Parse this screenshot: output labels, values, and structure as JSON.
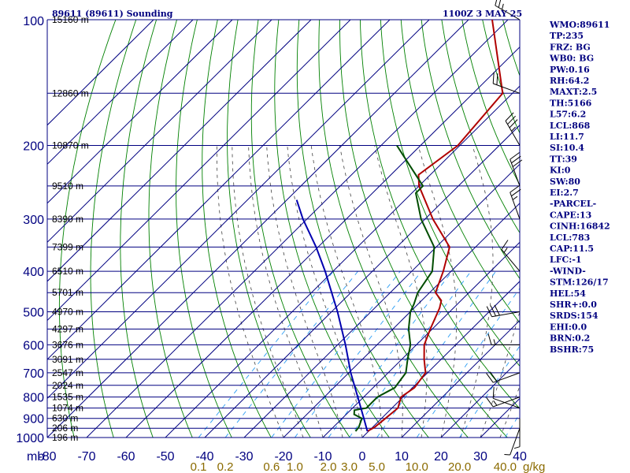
{
  "header": {
    "station": "89611 (89611) Sounding",
    "valid_time": "1100Z  3 MAY 25"
  },
  "chart_data": {
    "type": "line",
    "title": "89611 (89611) Sounding",
    "y_axis": {
      "label": "mb",
      "scale": "log",
      "range": [
        1000,
        100
      ],
      "ticks": [
        100,
        200,
        300,
        400,
        500,
        600,
        700,
        800,
        900,
        1000
      ]
    },
    "x_axis": {
      "label": "",
      "unit": "°C",
      "range": [
        -80,
        40
      ],
      "ticks": [
        -80,
        -70,
        -60,
        -50,
        -40,
        -30,
        -20,
        -10,
        0,
        10,
        20,
        30,
        40
      ],
      "tick_labels": [
        "-80",
        "-70",
        "-60",
        "-50",
        "-40",
        "-30",
        "-20",
        "-10",
        "0",
        "10",
        "20",
        "30",
        "40"
      ]
    },
    "skew_deg_per_log_unit": 107,
    "mixing_ratio_ticks": {
      "labels": [
        "0.1",
        "0.2",
        "0.6",
        "1.0",
        "2.0",
        "3.0",
        "5.0",
        "10.0",
        "20.0",
        "40.0"
      ],
      "unit": "g/kg"
    },
    "height_labels": [
      {
        "p": 100,
        "text": "15160 m"
      },
      {
        "p": 150,
        "text": "12860 m"
      },
      {
        "p": 200,
        "text": "10870 m"
      },
      {
        "p": 250,
        "text": "9510 m"
      },
      {
        "p": 300,
        "text": "8390 m"
      },
      {
        "p": 350,
        "text": "7399 m"
      },
      {
        "p": 400,
        "text": "6510 m"
      },
      {
        "p": 450,
        "text": "5701 m"
      },
      {
        "p": 500,
        "text": "4970 m"
      },
      {
        "p": 550,
        "text": "4297 m"
      },
      {
        "p": 600,
        "text": "3676 m"
      },
      {
        "p": 650,
        "text": "3091 m"
      },
      {
        "p": 700,
        "text": "2547 m"
      },
      {
        "p": 750,
        "text": "2024 m"
      },
      {
        "p": 800,
        "text": "1535 m"
      },
      {
        "p": 850,
        "text": "1074 m"
      },
      {
        "p": 900,
        "text": "630 m"
      },
      {
        "p": 950,
        "text": "206 m"
      },
      {
        "p": 1000,
        "text": "196 m"
      }
    ],
    "series": [
      {
        "name": "temperature",
        "color": "#b00000",
        "points": [
          {
            "p": 966,
            "t": -0.3
          },
          {
            "p": 945,
            "t": 0.5
          },
          {
            "p": 900,
            "t": 1.0
          },
          {
            "p": 850,
            "t": 1.5
          },
          {
            "p": 800,
            "t": -0.5
          },
          {
            "p": 760,
            "t": 0.5
          },
          {
            "p": 700,
            "t": -0.5
          },
          {
            "p": 650,
            "t": -4.3
          },
          {
            "p": 600,
            "t": -8.0
          },
          {
            "p": 550,
            "t": -10.5
          },
          {
            "p": 500,
            "t": -13.0
          },
          {
            "p": 490,
            "t": -13.5
          },
          {
            "p": 470,
            "t": -15.0
          },
          {
            "p": 450,
            "t": -18.5
          },
          {
            "p": 400,
            "t": -22.0
          },
          {
            "p": 350,
            "t": -26.6
          },
          {
            "p": 300,
            "t": -38.0
          },
          {
            "p": 250,
            "t": -50.0
          },
          {
            "p": 235,
            "t": -53.0
          },
          {
            "p": 200,
            "t": -50.5
          },
          {
            "p": 150,
            "t": -52.5
          },
          {
            "p": 100,
            "t": -74.0
          }
        ]
      },
      {
        "name": "dewpoint",
        "color": "#004d00",
        "points": [
          {
            "p": 966,
            "t": -3.3
          },
          {
            "p": 945,
            "t": -3.5
          },
          {
            "p": 900,
            "t": -5.0
          },
          {
            "p": 880,
            "t": -8.0
          },
          {
            "p": 860,
            "t": -9.0
          },
          {
            "p": 850,
            "t": -6.5
          },
          {
            "p": 800,
            "t": -6.5
          },
          {
            "p": 760,
            "t": -4.5
          },
          {
            "p": 700,
            "t": -5.5
          },
          {
            "p": 650,
            "t": -8.5
          },
          {
            "p": 600,
            "t": -11.5
          },
          {
            "p": 550,
            "t": -16.0
          },
          {
            "p": 500,
            "t": -20.0
          },
          {
            "p": 480,
            "t": -21.0
          },
          {
            "p": 450,
            "t": -23.0
          },
          {
            "p": 400,
            "t": -24.8
          },
          {
            "p": 350,
            "t": -30.5
          },
          {
            "p": 300,
            "t": -41.0
          },
          {
            "p": 260,
            "t": -49.0
          },
          {
            "p": 250,
            "t": -49.0
          },
          {
            "p": 200,
            "t": -66.0
          }
        ]
      },
      {
        "name": "parcel",
        "color": "#0000b0",
        "points": [
          {
            "p": 966,
            "t": -0.3
          },
          {
            "p": 900,
            "t": -4.5
          },
          {
            "p": 800,
            "t": -11.5
          },
          {
            "p": 700,
            "t": -19.5
          },
          {
            "p": 600,
            "t": -28.0
          },
          {
            "p": 500,
            "t": -38.5
          },
          {
            "p": 400,
            "t": -52.0
          },
          {
            "p": 350,
            "t": -60.5
          },
          {
            "p": 300,
            "t": -71.0
          },
          {
            "p": 270,
            "t": -77.5
          }
        ]
      }
    ],
    "wind_barbs": [
      {
        "p": 100,
        "dir": 300,
        "spd": 25
      },
      {
        "p": 150,
        "dir": 290,
        "spd": 20
      },
      {
        "p": 200,
        "dir": 330,
        "spd": 35
      },
      {
        "p": 250,
        "dir": 340,
        "spd": 30
      },
      {
        "p": 300,
        "dir": 340,
        "spd": 25
      },
      {
        "p": 400,
        "dir": 320,
        "spd": 15
      },
      {
        "p": 500,
        "dir": 260,
        "spd": 30
      },
      {
        "p": 600,
        "dir": 270,
        "spd": 15
      },
      {
        "p": 700,
        "dir": 250,
        "spd": 20
      },
      {
        "p": 800,
        "dir": 250,
        "spd": 15
      },
      {
        "p": 850,
        "dir": 290,
        "spd": 10
      },
      {
        "p": 900,
        "dir": 180,
        "spd": 5
      },
      {
        "p": 950,
        "dir": 200,
        "spd": 5
      }
    ]
  },
  "indices": [
    "WMO:89611",
    "TP:235",
    "FRZ: BG",
    "WB0: BG",
    "PW:0.16",
    "RH:64.2",
    "MAXT:2.5",
    "TH:5166",
    "L57:6.2",
    "LCL:868",
    "LI:11.7",
    "SI:10.4",
    "TT:39",
    "KI:0",
    "SW:80",
    "EI:2.7",
    "-PARCEL-",
    "CAPE:13",
    "CINH:16842",
    "LCL:783",
    "CAP:11.5",
    "LFC:-1",
    "-WIND-",
    "STM:126/17",
    "HEL:54",
    "SHR+:0.0",
    "SRDS:154",
    "EHI:0.0",
    "BRN:0.2",
    "BSHR:75"
  ],
  "colors": {
    "grid": "#000080",
    "dry_adiabat": "#008000",
    "moist_adiabat": "#404040",
    "mixing_ratio": "#2a9df4",
    "temperature": "#b00000",
    "dewpoint": "#004d00",
    "parcel": "#0000b0",
    "mixing_label": "#8b6b00"
  }
}
